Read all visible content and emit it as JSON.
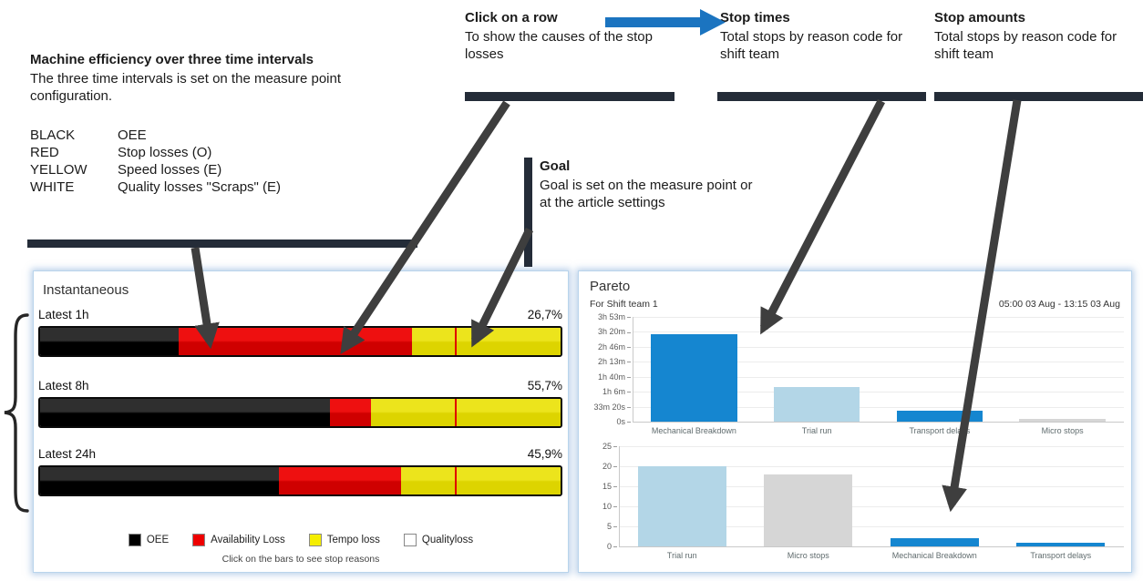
{
  "annotations": {
    "machine_efficiency": {
      "title": "Machine efficiency over three time intervals",
      "body": "The three time intervals is set on the measure point configuration.",
      "legend": [
        {
          "key": "BLACK",
          "value": "OEE"
        },
        {
          "key": "RED",
          "value": "Stop losses (O)"
        },
        {
          "key": "YELLOW",
          "value": "Speed losses (E)"
        },
        {
          "key": "WHITE",
          "value": "Quality losses \"Scraps\" (E)"
        }
      ]
    },
    "click_on_a_row": {
      "title": "Click on a row",
      "body": "To show the causes of the stop losses"
    },
    "stop_times": {
      "title": "Stop times",
      "body": "Total stops by reason code for shift team"
    },
    "stop_amounts": {
      "title": "Stop amounts",
      "body": "Total stops by reason code for shift team"
    },
    "goal": {
      "title": "Goal",
      "body": "Goal is set on the measure point or at the article settings"
    }
  },
  "colors": {
    "annotation_bar": "#242c38",
    "arrow_gray": "#3e3e3e",
    "arrow_blue": "#1b74c0",
    "bar_blue": "#1586d0",
    "bar_light_blue": "#b3d6e7",
    "bar_gray": "#d6d6d6",
    "goal_marker_red": "#e00000"
  },
  "instantaneous_panel": {
    "title": "Instantaneous",
    "type": "stacked-bar-horizontal",
    "rows": [
      {
        "label": "Latest 1h",
        "value": "26,7%",
        "oee_pct": 26.7,
        "availability_loss_pct": 44.8,
        "tempo_loss_pct": 28.5,
        "quality_loss_pct": 0,
        "goal_pct": 79.6
      },
      {
        "label": "Latest 8h",
        "value": "55,7%",
        "oee_pct": 55.7,
        "availability_loss_pct": 7.8,
        "tempo_loss_pct": 36.5,
        "quality_loss_pct": 0,
        "goal_pct": 79.6
      },
      {
        "label": "Latest 24h",
        "value": "45,9%",
        "oee_pct": 45.9,
        "availability_loss_pct": 23.4,
        "tempo_loss_pct": 30.7,
        "quality_loss_pct": 0,
        "goal_pct": 79.6
      }
    ],
    "legend": [
      {
        "label": "OEE",
        "color": "#000000"
      },
      {
        "label": "Availability Loss",
        "color": "#ee0000"
      },
      {
        "label": "Tempo loss",
        "color": "#f5ee00"
      },
      {
        "label": "Qualityloss",
        "color": "#ffffff"
      }
    ],
    "footer": "Click on the bars to see stop reasons"
  },
  "pareto_panel": {
    "title": "Pareto",
    "subtitle": "For Shift team 1",
    "period": "05:00 03 Aug - 13:15 03 Aug"
  },
  "chart_data": [
    {
      "type": "bar",
      "title": "Stop times by reason code",
      "max": 14000,
      "unit": "seconds",
      "ticks": [
        {
          "label": "3h 53m",
          "value": 14000
        },
        {
          "label": "3h 20m",
          "value": 12000
        },
        {
          "label": "2h 46m",
          "value": 10000
        },
        {
          "label": "2h 13m",
          "value": 8000
        },
        {
          "label": "1h 40m",
          "value": 6000
        },
        {
          "label": "1h 6m",
          "value": 4000
        },
        {
          "label": "33m 20s",
          "value": 2000
        },
        {
          "label": "0s",
          "value": 0
        }
      ],
      "points": [
        {
          "label": "Mechanical Breakdown",
          "value": 11700,
          "color": "#1586d0"
        },
        {
          "label": "Trial run",
          "value": 4600,
          "color": "#b3d6e7"
        },
        {
          "label": "Transport delays",
          "value": 1450,
          "color": "#1586d0"
        },
        {
          "label": "Micro stops",
          "value": 350,
          "color": "#d6d6d6"
        }
      ]
    },
    {
      "type": "bar",
      "title": "Stop amounts by reason code",
      "max": 25,
      "unit": "count",
      "ticks": [
        {
          "label": "25",
          "value": 25
        },
        {
          "label": "20",
          "value": 20
        },
        {
          "label": "15",
          "value": 15
        },
        {
          "label": "10",
          "value": 10
        },
        {
          "label": "5",
          "value": 5
        },
        {
          "label": "0",
          "value": 0
        }
      ],
      "points": [
        {
          "label": "Trial run",
          "value": 20,
          "color": "#b3d6e7"
        },
        {
          "label": "Micro stops",
          "value": 18,
          "color": "#d6d6d6"
        },
        {
          "label": "Mechanical Breakdown",
          "value": 2,
          "color": "#1586d0"
        },
        {
          "label": "Transport delays",
          "value": 1,
          "color": "#1586d0"
        }
      ]
    }
  ]
}
